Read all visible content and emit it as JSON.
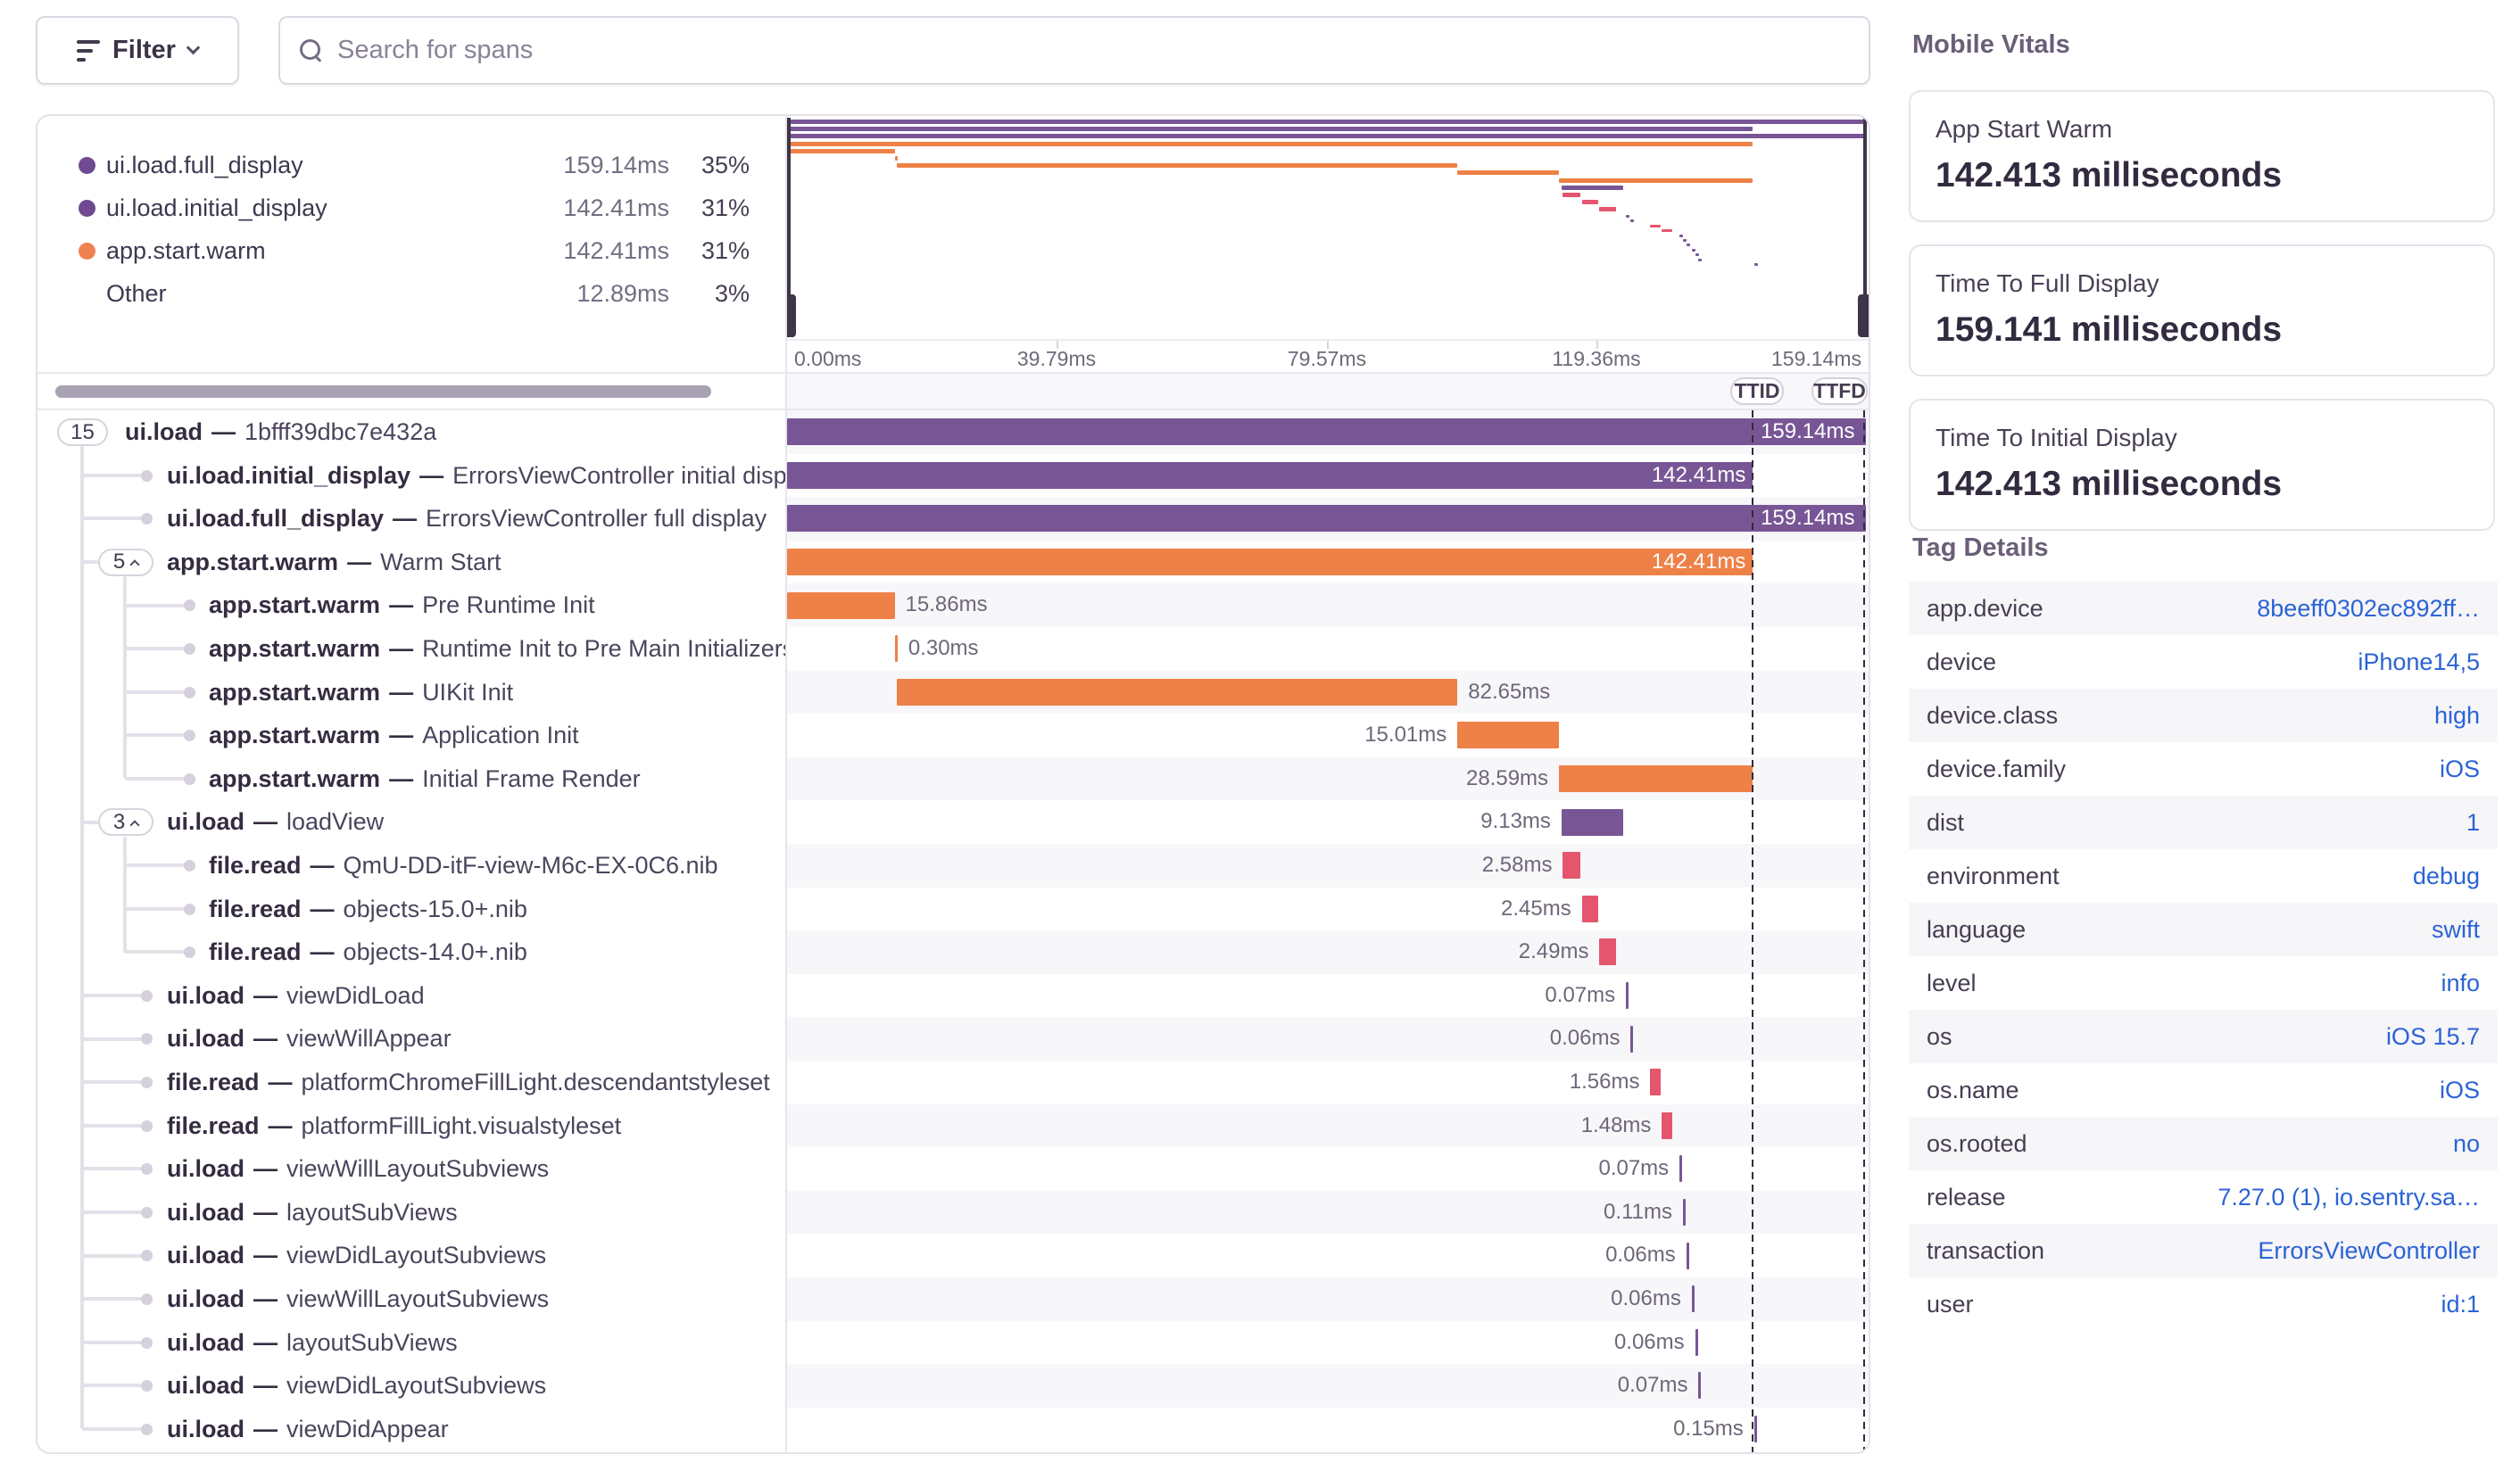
{
  "toolbar": {
    "filter_label": "Filter",
    "search_placeholder": "Search for spans"
  },
  "legend": {
    "items": [
      {
        "name": "ui.load.full_display",
        "value": "159.14ms",
        "pct": "35%",
        "color": "#6f4a90"
      },
      {
        "name": "ui.load.initial_display",
        "value": "142.41ms",
        "pct": "31%",
        "color": "#6f4a90"
      },
      {
        "name": "app.start.warm",
        "value": "142.41ms",
        "pct": "31%",
        "color": "#f08150"
      },
      {
        "name": "Other",
        "value": "12.89ms",
        "pct": "3%",
        "color": null
      }
    ]
  },
  "chart": {
    "axis_ticks": [
      "0.00ms",
      "39.79ms",
      "79.57ms",
      "119.36ms",
      "159.14ms"
    ],
    "range_ms": 159.14,
    "ttid_label": "TTID",
    "ttfd_label": "TTFD",
    "ttid_ms": 142.41,
    "ttfd_ms": 159.14
  },
  "trace": {
    "separator": "—",
    "rows": [
      {
        "op": "ui.load",
        "desc": "1bfff39dbc7e432a",
        "level": 1,
        "pill": "15",
        "chevron": false,
        "color": "purple",
        "start_ms": 0,
        "duration_ms": 159.14,
        "duration_label": "159.14ms",
        "label_pos": "in",
        "shape": "bar"
      },
      {
        "op": "ui.load.initial_display",
        "desc": "ErrorsViewController initial display",
        "level": 2,
        "pill": null,
        "chevron": false,
        "color": "purple",
        "start_ms": 0,
        "duration_ms": 142.41,
        "duration_label": "142.41ms",
        "label_pos": "in",
        "shape": "bar"
      },
      {
        "op": "ui.load.full_display",
        "desc": "ErrorsViewController full display",
        "level": 2,
        "pill": null,
        "chevron": false,
        "color": "purple",
        "start_ms": 0,
        "duration_ms": 159.14,
        "duration_label": "159.14ms",
        "label_pos": "in",
        "shape": "bar"
      },
      {
        "op": "app.start.warm",
        "desc": "Warm Start",
        "level": 2,
        "pill": "5",
        "chevron": true,
        "color": "orange",
        "start_ms": 0,
        "duration_ms": 142.41,
        "duration_label": "142.41ms",
        "label_pos": "in",
        "shape": "bar"
      },
      {
        "op": "app.start.warm",
        "desc": "Pre Runtime Init",
        "level": 3,
        "pill": null,
        "chevron": false,
        "color": "orange",
        "start_ms": 0,
        "duration_ms": 15.86,
        "duration_label": "15.86ms",
        "label_pos": "right",
        "shape": "bar"
      },
      {
        "op": "app.start.warm",
        "desc": "Runtime Init to Pre Main Initializers",
        "level": 3,
        "pill": null,
        "chevron": false,
        "color": "orange",
        "start_ms": 15.9,
        "duration_ms": 0.3,
        "duration_label": "0.30ms",
        "label_pos": "right",
        "shape": "bar"
      },
      {
        "op": "app.start.warm",
        "desc": "UIKit Init",
        "level": 3,
        "pill": null,
        "chevron": false,
        "color": "orange",
        "start_ms": 16.2,
        "duration_ms": 82.65,
        "duration_label": "82.65ms",
        "label_pos": "right",
        "shape": "bar"
      },
      {
        "op": "app.start.warm",
        "desc": "Application Init",
        "level": 3,
        "pill": null,
        "chevron": false,
        "color": "orange",
        "start_ms": 98.85,
        "duration_ms": 15.01,
        "duration_label": "15.01ms",
        "label_pos": "left",
        "shape": "bar"
      },
      {
        "op": "app.start.warm",
        "desc": "Initial Frame Render",
        "level": 3,
        "pill": null,
        "chevron": false,
        "color": "orange",
        "start_ms": 113.82,
        "duration_ms": 28.59,
        "duration_label": "28.59ms",
        "label_pos": "left",
        "shape": "bar"
      },
      {
        "op": "ui.load",
        "desc": "loadView",
        "level": 2,
        "pill": "3",
        "chevron": true,
        "color": "purple",
        "start_ms": 114.2,
        "duration_ms": 9.13,
        "duration_label": "9.13ms",
        "label_pos": "left",
        "shape": "bar"
      },
      {
        "op": "file.read",
        "desc": "QmU-DD-itF-view-M6c-EX-0C6.nib",
        "level": 3,
        "pill": null,
        "chevron": false,
        "color": "pink",
        "start_ms": 114.4,
        "duration_ms": 2.58,
        "duration_label": "2.58ms",
        "label_pos": "left",
        "shape": "bar"
      },
      {
        "op": "file.read",
        "desc": "objects-15.0+.nib",
        "level": 3,
        "pill": null,
        "chevron": false,
        "color": "pink",
        "start_ms": 117.2,
        "duration_ms": 2.45,
        "duration_label": "2.45ms",
        "label_pos": "left",
        "shape": "bar"
      },
      {
        "op": "file.read",
        "desc": "objects-14.0+.nib",
        "level": 3,
        "pill": null,
        "chevron": false,
        "color": "pink",
        "start_ms": 119.8,
        "duration_ms": 2.49,
        "duration_label": "2.49ms",
        "label_pos": "left",
        "shape": "bar"
      },
      {
        "op": "ui.load",
        "desc": "viewDidLoad",
        "level": 2,
        "pill": null,
        "chevron": false,
        "color": "purple",
        "start_ms": 123.7,
        "duration_ms": 0.07,
        "duration_label": "0.07ms",
        "label_pos": "left",
        "shape": "tick"
      },
      {
        "op": "ui.load",
        "desc": "viewWillAppear",
        "level": 2,
        "pill": null,
        "chevron": false,
        "color": "purple",
        "start_ms": 124.4,
        "duration_ms": 0.06,
        "duration_label": "0.06ms",
        "label_pos": "left",
        "shape": "tick"
      },
      {
        "op": "file.read",
        "desc": "platformChromeFillLight.descendantstyleset",
        "level": 2,
        "pill": null,
        "chevron": false,
        "color": "pink",
        "start_ms": 127.3,
        "duration_ms": 1.56,
        "duration_label": "1.56ms",
        "label_pos": "left",
        "shape": "bar"
      },
      {
        "op": "file.read",
        "desc": "platformFillLight.visualstyleset",
        "level": 2,
        "pill": null,
        "chevron": false,
        "color": "pink",
        "start_ms": 129.0,
        "duration_ms": 1.48,
        "duration_label": "1.48ms",
        "label_pos": "left",
        "shape": "bar"
      },
      {
        "op": "ui.load",
        "desc": "viewWillLayoutSubviews",
        "level": 2,
        "pill": null,
        "chevron": false,
        "color": "purple",
        "start_ms": 131.6,
        "duration_ms": 0.07,
        "duration_label": "0.07ms",
        "label_pos": "left",
        "shape": "tick"
      },
      {
        "op": "ui.load",
        "desc": "layoutSubViews",
        "level": 2,
        "pill": null,
        "chevron": false,
        "color": "purple",
        "start_ms": 132.1,
        "duration_ms": 0.11,
        "duration_label": "0.11ms",
        "label_pos": "left",
        "shape": "tick"
      },
      {
        "op": "ui.load",
        "desc": "viewDidLayoutSubviews",
        "level": 2,
        "pill": null,
        "chevron": false,
        "color": "purple",
        "start_ms": 132.6,
        "duration_ms": 0.06,
        "duration_label": "0.06ms",
        "label_pos": "left",
        "shape": "tick"
      },
      {
        "op": "ui.load",
        "desc": "viewWillLayoutSubviews",
        "level": 2,
        "pill": null,
        "chevron": false,
        "color": "purple",
        "start_ms": 133.4,
        "duration_ms": 0.06,
        "duration_label": "0.06ms",
        "label_pos": "left",
        "shape": "tick"
      },
      {
        "op": "ui.load",
        "desc": "layoutSubViews",
        "level": 2,
        "pill": null,
        "chevron": false,
        "color": "purple",
        "start_ms": 133.9,
        "duration_ms": 0.06,
        "duration_label": "0.06ms",
        "label_pos": "left",
        "shape": "tick"
      },
      {
        "op": "ui.load",
        "desc": "viewDidLayoutSubviews",
        "level": 2,
        "pill": null,
        "chevron": false,
        "color": "purple",
        "start_ms": 134.4,
        "duration_ms": 0.07,
        "duration_label": "0.07ms",
        "label_pos": "left",
        "shape": "tick"
      },
      {
        "op": "ui.load",
        "desc": "viewDidAppear",
        "level": 2,
        "pill": null,
        "chevron": false,
        "color": "purple",
        "start_ms": 142.6,
        "duration_ms": 0.15,
        "duration_label": "0.15ms",
        "label_pos": "left",
        "shape": "tick"
      }
    ]
  },
  "vitals": {
    "title": "Mobile Vitals",
    "cards": [
      {
        "label": "App Start Warm",
        "value": "142.413 milliseconds"
      },
      {
        "label": "Time To Full Display",
        "value": "159.141 milliseconds"
      },
      {
        "label": "Time To Initial Display",
        "value": "142.413 milliseconds"
      }
    ]
  },
  "tags": {
    "title": "Tag Details",
    "rows": [
      {
        "key": "app.device",
        "value": "8beeff0302ec892ff…"
      },
      {
        "key": "device",
        "value": "iPhone14,5"
      },
      {
        "key": "device.class",
        "value": "high"
      },
      {
        "key": "device.family",
        "value": "iOS"
      },
      {
        "key": "dist",
        "value": "1"
      },
      {
        "key": "environment",
        "value": "debug"
      },
      {
        "key": "language",
        "value": "swift"
      },
      {
        "key": "level",
        "value": "info"
      },
      {
        "key": "os",
        "value": "iOS 15.7"
      },
      {
        "key": "os.name",
        "value": "iOS"
      },
      {
        "key": "os.rooted",
        "value": "no"
      },
      {
        "key": "release",
        "value": "7.27.0 (1), io.sentry.sa…"
      },
      {
        "key": "transaction",
        "value": "ErrorsViewController"
      },
      {
        "key": "user",
        "value": "id:1"
      }
    ]
  },
  "colors": {
    "purple": "#785695",
    "orange": "#ee8147",
    "pink": "#e4566e",
    "link_blue": "#2b63d6"
  }
}
